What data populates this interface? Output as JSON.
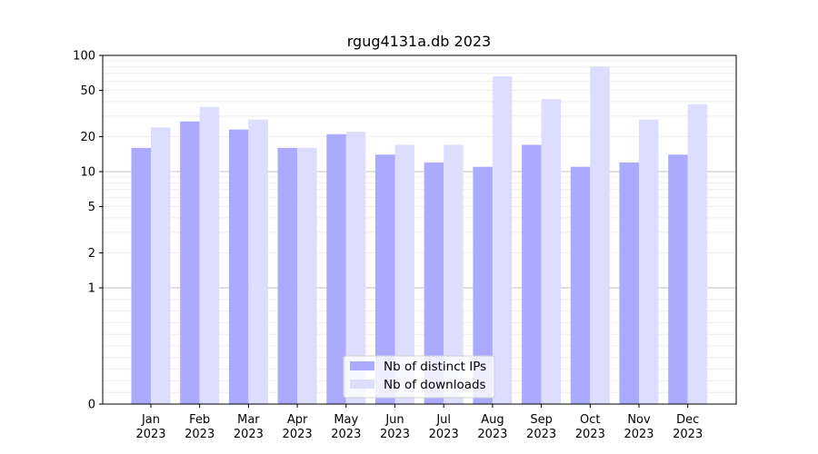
{
  "chart_data": {
    "type": "bar",
    "title": "rgug4131a.db 2023",
    "xlabel": "",
    "ylabel": "",
    "y_scale": "symlog",
    "ylim": [
      0,
      100
    ],
    "y_ticks": [
      0,
      1,
      2,
      5,
      10,
      20,
      50,
      100
    ],
    "y_tick_labels": [
      "0",
      "1",
      "2",
      "5",
      "10",
      "20",
      "50",
      "100"
    ],
    "grid": "horizontal",
    "legend_position": "bottom-center",
    "categories": [
      [
        "Jan",
        "2023"
      ],
      [
        "Feb",
        "2023"
      ],
      [
        "Mar",
        "2023"
      ],
      [
        "Apr",
        "2023"
      ],
      [
        "May",
        "2023"
      ],
      [
        "Jun",
        "2023"
      ],
      [
        "Jul",
        "2023"
      ],
      [
        "Aug",
        "2023"
      ],
      [
        "Sep",
        "2023"
      ],
      [
        "Oct",
        "2023"
      ],
      [
        "Nov",
        "2023"
      ],
      [
        "Dec",
        "2023"
      ]
    ],
    "series": [
      {
        "name": "Nb of distinct IPs",
        "color": "#aaaaff",
        "values": [
          16,
          27,
          23,
          16,
          21,
          14,
          12,
          11,
          17,
          11,
          12,
          14
        ]
      },
      {
        "name": "Nb of downloads",
        "color": "#ddddff",
        "values": [
          24,
          36,
          28,
          16,
          22,
          17,
          17,
          66,
          42,
          80,
          28,
          38
        ]
      }
    ]
  }
}
